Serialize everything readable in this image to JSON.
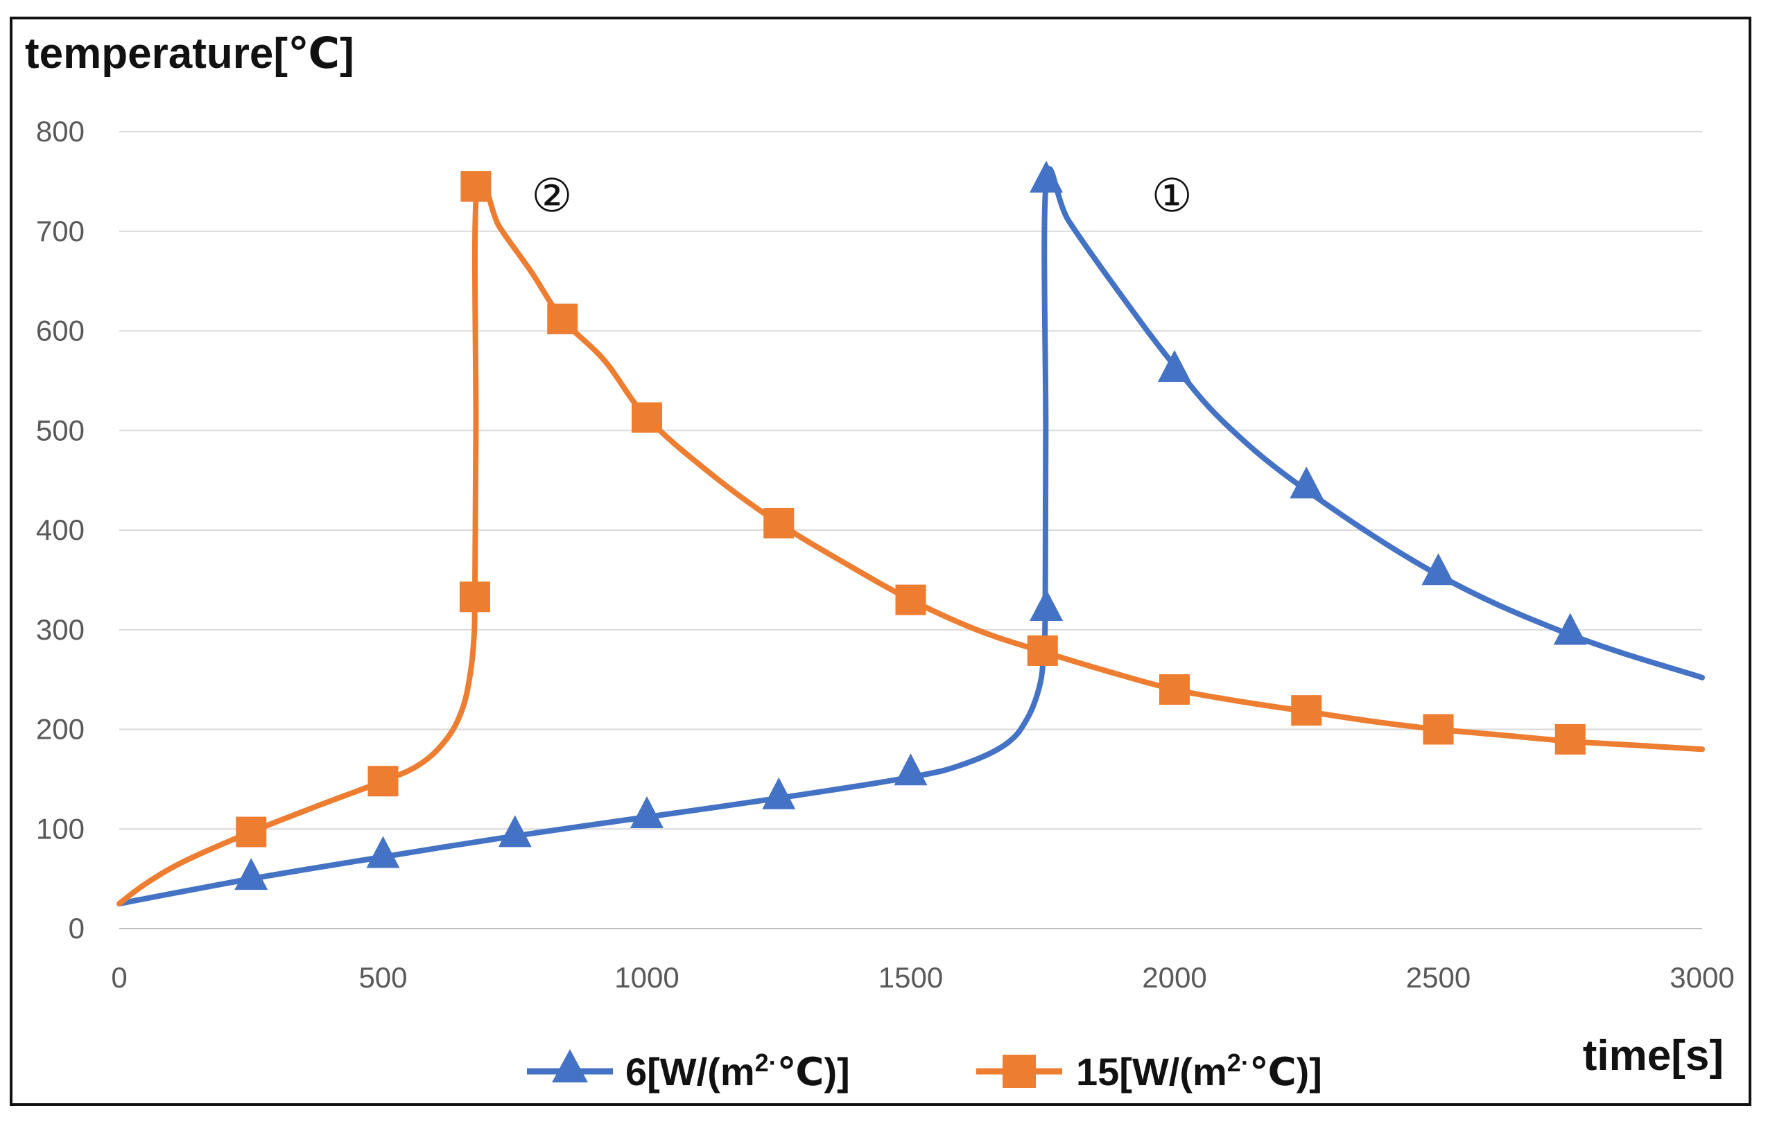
{
  "chart_data": {
    "type": "line",
    "ylabel": "temperature[℃]",
    "xlabel": "time[s]",
    "xlim": [
      0,
      3000
    ],
    "ylim": [
      0,
      800
    ],
    "xticks": [
      0,
      500,
      1000,
      1500,
      2000,
      2500,
      3000
    ],
    "yticks": [
      0,
      100,
      200,
      300,
      400,
      500,
      600,
      700,
      800
    ],
    "grid": true,
    "legend_position": "bottom",
    "series": [
      {
        "name": "6[W/(m2·℃)]",
        "legend_label": "6[W/(m",
        "legend_sup": "2·",
        "legend_suffix": "℃)]",
        "color": "#4472C4",
        "marker": "triangle",
        "curve": [
          [
            0,
            25
          ],
          [
            250,
            50
          ],
          [
            500,
            72
          ],
          [
            750,
            93
          ],
          [
            1000,
            112
          ],
          [
            1250,
            131
          ],
          [
            1500,
            152
          ],
          [
            1600,
            165
          ],
          [
            1680,
            185
          ],
          [
            1720,
            210
          ],
          [
            1745,
            245
          ],
          [
            1752,
            280
          ],
          [
            1755,
            320
          ],
          [
            1756,
            500
          ],
          [
            1757,
            750
          ],
          [
            1800,
            710
          ],
          [
            1900,
            635
          ],
          [
            2000,
            565
          ],
          [
            2100,
            505
          ],
          [
            2250,
            440
          ],
          [
            2500,
            355
          ],
          [
            2750,
            295
          ],
          [
            3000,
            252
          ]
        ],
        "markers": [
          [
            250,
            50
          ],
          [
            500,
            72
          ],
          [
            750,
            93
          ],
          [
            1000,
            112
          ],
          [
            1250,
            131
          ],
          [
            1500,
            155
          ],
          [
            1757,
            320
          ],
          [
            1757,
            750
          ],
          [
            2000,
            560
          ],
          [
            2250,
            443
          ],
          [
            2500,
            356
          ],
          [
            2750,
            296
          ]
        ]
      },
      {
        "name": "15[W/(m2·℃)]",
        "legend_label": "15[W/(m",
        "legend_sup": "2·",
        "legend_suffix": "℃)]",
        "color": "#ED7D31",
        "marker": "square",
        "curve": [
          [
            0,
            25
          ],
          [
            50,
            45
          ],
          [
            125,
            68
          ],
          [
            250,
            97
          ],
          [
            375,
            123
          ],
          [
            500,
            148
          ],
          [
            570,
            165
          ],
          [
            620,
            190
          ],
          [
            650,
            220
          ],
          [
            665,
            255
          ],
          [
            672,
            290
          ],
          [
            674,
            330
          ],
          [
            676,
            500
          ],
          [
            678,
            745
          ],
          [
            720,
            705
          ],
          [
            780,
            660
          ],
          [
            840,
            612
          ],
          [
            920,
            570
          ],
          [
            1000,
            513
          ],
          [
            1125,
            455
          ],
          [
            1250,
            407
          ],
          [
            1375,
            367
          ],
          [
            1500,
            330
          ],
          [
            1625,
            300
          ],
          [
            1750,
            278
          ],
          [
            1875,
            258
          ],
          [
            2000,
            240
          ],
          [
            2125,
            228
          ],
          [
            2250,
            218
          ],
          [
            2375,
            208
          ],
          [
            2500,
            200
          ],
          [
            2625,
            194
          ],
          [
            2750,
            188
          ],
          [
            2875,
            184
          ],
          [
            3000,
            180
          ]
        ],
        "markers": [
          [
            250,
            97
          ],
          [
            500,
            148
          ],
          [
            674,
            333
          ],
          [
            676,
            745
          ],
          [
            840,
            612
          ],
          [
            1000,
            513
          ],
          [
            1250,
            407
          ],
          [
            1500,
            330
          ],
          [
            1750,
            279
          ],
          [
            2000,
            240
          ],
          [
            2250,
            219
          ],
          [
            2500,
            200
          ],
          [
            2750,
            190
          ]
        ]
      }
    ],
    "annotations": [
      {
        "text": "②",
        "x": 820,
        "y": 720
      },
      {
        "text": "①",
        "x": 1995,
        "y": 720
      }
    ]
  }
}
